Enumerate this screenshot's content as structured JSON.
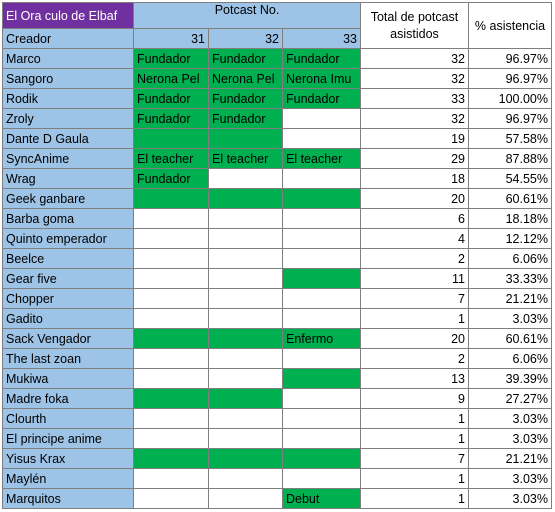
{
  "header": {
    "title": "El Ora culo de Elbaf",
    "group_label": "Potcast No.",
    "total_label": "Total de potcast asistidos",
    "percent_label": "% asistencia",
    "creator_label": "Creador",
    "episodes": [
      31,
      32,
      33
    ]
  },
  "table": {
    "rows": [
      {
        "name": "Marco",
        "episodes": [
          "Fundador",
          "Fundador",
          "Fundador"
        ],
        "total": 32,
        "percent": "96.97%"
      },
      {
        "name": "Sangoro",
        "episodes": [
          "Nerona Pel",
          "Nerona Pel",
          "Nerona Imu"
        ],
        "total": 32,
        "percent": "96.97%"
      },
      {
        "name": "Rodik",
        "episodes": [
          "Fundador",
          "Fundador",
          "Fundador"
        ],
        "total": 33,
        "percent": "100.00%"
      },
      {
        "name": "Zroly",
        "episodes": [
          "Fundador",
          "Fundador",
          null
        ],
        "total": 32,
        "percent": "96.97%"
      },
      {
        "name": "Dante D Gaula",
        "episodes": [
          true,
          true,
          null
        ],
        "total": 19,
        "percent": "57.58%"
      },
      {
        "name": "SyncAnime",
        "episodes": [
          "El teacher",
          "El teacher",
          "El teacher"
        ],
        "total": 29,
        "percent": "87.88%"
      },
      {
        "name": "Wrag",
        "episodes": [
          "Fundador",
          null,
          null
        ],
        "total": 18,
        "percent": "54.55%"
      },
      {
        "name": "Geek ganbare",
        "episodes": [
          true,
          true,
          true
        ],
        "total": 20,
        "percent": "60.61%"
      },
      {
        "name": "Barba goma",
        "episodes": [
          null,
          null,
          null
        ],
        "total": 6,
        "percent": "18.18%"
      },
      {
        "name": "Quinto emperador",
        "episodes": [
          null,
          null,
          null
        ],
        "total": 4,
        "percent": "12.12%"
      },
      {
        "name": "Beelce",
        "episodes": [
          null,
          null,
          null
        ],
        "total": 2,
        "percent": "6.06%"
      },
      {
        "name": "Gear five",
        "episodes": [
          null,
          null,
          true
        ],
        "total": 11,
        "percent": "33.33%"
      },
      {
        "name": "Chopper",
        "episodes": [
          null,
          null,
          null
        ],
        "total": 7,
        "percent": "21.21%"
      },
      {
        "name": "Gadito",
        "episodes": [
          null,
          null,
          null
        ],
        "total": 1,
        "percent": "3.03%"
      },
      {
        "name": "Sack Vengador",
        "episodes": [
          true,
          true,
          "Enfermo"
        ],
        "total": 20,
        "percent": "60.61%"
      },
      {
        "name": "The last zoan",
        "episodes": [
          null,
          null,
          null
        ],
        "total": 2,
        "percent": "6.06%"
      },
      {
        "name": "Mukiwa",
        "episodes": [
          null,
          null,
          true
        ],
        "total": 13,
        "percent": "39.39%"
      },
      {
        "name": "Madre foka",
        "episodes": [
          true,
          true,
          null
        ],
        "total": 9,
        "percent": "27.27%"
      },
      {
        "name": "Clourth",
        "episodes": [
          null,
          null,
          null
        ],
        "total": 1,
        "percent": "3.03%"
      },
      {
        "name": "El principe anime",
        "episodes": [
          null,
          null,
          null
        ],
        "total": 1,
        "percent": "3.03%"
      },
      {
        "name": "Yisus Krax",
        "episodes": [
          true,
          true,
          true
        ],
        "total": 7,
        "percent": "21.21%"
      },
      {
        "name": "Maylén",
        "episodes": [
          null,
          null,
          null
        ],
        "total": 1,
        "percent": "3.03%"
      },
      {
        "name": "Marquitos",
        "episodes": [
          null,
          null,
          "Debut"
        ],
        "total": 1,
        "percent": "3.03%"
      }
    ]
  }
}
